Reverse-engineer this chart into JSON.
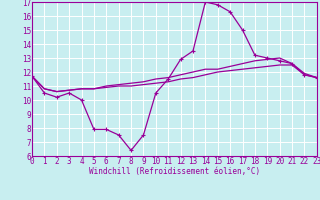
{
  "xlabel": "Windchill (Refroidissement éolien,°C)",
  "bg_color": "#c8eef0",
  "line_color": "#990099",
  "grid_color": "#ffffff",
  "xmin": 0,
  "xmax": 23,
  "ymin": 6,
  "ymax": 17,
  "xticks": [
    0,
    1,
    2,
    3,
    4,
    5,
    6,
    7,
    8,
    9,
    10,
    11,
    12,
    13,
    14,
    15,
    16,
    17,
    18,
    19,
    20,
    21,
    22,
    23
  ],
  "yticks": [
    6,
    7,
    8,
    9,
    10,
    11,
    12,
    13,
    14,
    15,
    16,
    17
  ],
  "series1_x": [
    0,
    1,
    2,
    3,
    4,
    5,
    6,
    7,
    8,
    9,
    10,
    11,
    12,
    13,
    14,
    15,
    16,
    17,
    18,
    19,
    20,
    21,
    22,
    23
  ],
  "series1_y": [
    11.7,
    10.5,
    10.2,
    10.5,
    10.0,
    7.9,
    7.9,
    7.5,
    6.4,
    7.5,
    10.5,
    11.5,
    12.9,
    13.5,
    17.0,
    16.8,
    16.3,
    15.0,
    13.2,
    13.0,
    12.8,
    12.6,
    11.8,
    11.6
  ],
  "series2_x": [
    0,
    1,
    2,
    3,
    4,
    5,
    6,
    7,
    8,
    9,
    10,
    11,
    12,
    13,
    14,
    15,
    16,
    17,
    18,
    19,
    20,
    21,
    22,
    23
  ],
  "series2_y": [
    11.7,
    10.8,
    10.6,
    10.7,
    10.8,
    10.8,
    10.9,
    11.0,
    11.0,
    11.1,
    11.2,
    11.3,
    11.5,
    11.6,
    11.8,
    12.0,
    12.1,
    12.2,
    12.3,
    12.4,
    12.5,
    12.5,
    11.8,
    11.6
  ],
  "series3_x": [
    0,
    1,
    2,
    3,
    4,
    5,
    6,
    7,
    8,
    9,
    10,
    11,
    12,
    13,
    14,
    15,
    16,
    17,
    18,
    19,
    20,
    21,
    22,
    23
  ],
  "series3_y": [
    11.7,
    10.8,
    10.6,
    10.7,
    10.8,
    10.8,
    11.0,
    11.1,
    11.2,
    11.3,
    11.5,
    11.6,
    11.8,
    12.0,
    12.2,
    12.2,
    12.4,
    12.6,
    12.8,
    12.9,
    13.0,
    12.6,
    11.9,
    11.6
  ],
  "xlabel_fontsize": 5.5,
  "tick_fontsize": 5.5
}
